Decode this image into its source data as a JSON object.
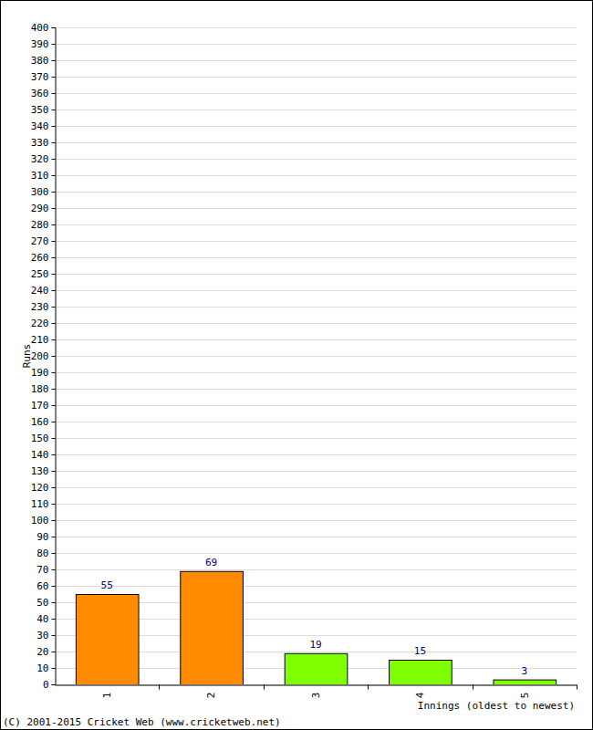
{
  "chart_data": {
    "type": "bar",
    "categories": [
      "1",
      "2",
      "3",
      "4",
      "5"
    ],
    "values": [
      55,
      69,
      19,
      15,
      3
    ],
    "colors": [
      "#ff8c00",
      "#ff8c00",
      "#7fff00",
      "#7fff00",
      "#7fff00"
    ],
    "x_label": "Innings (oldest to newest)",
    "y_label": "Runs",
    "annotations": [
      "(C) 2001-2015 Cricket Web (www.cricketweb.net)"
    ],
    "ylim": [
      0,
      400
    ],
    "yticks": [
      0,
      10,
      20,
      30,
      40,
      50,
      60,
      70,
      80,
      90,
      100,
      110,
      120,
      130,
      140,
      150,
      160,
      170,
      180,
      190,
      200,
      210,
      220,
      230,
      240,
      250,
      260,
      270,
      280,
      290,
      300,
      310,
      320,
      330,
      340,
      350,
      360,
      370,
      380,
      390,
      400
    ],
    "grid": true,
    "data_labels": true
  }
}
